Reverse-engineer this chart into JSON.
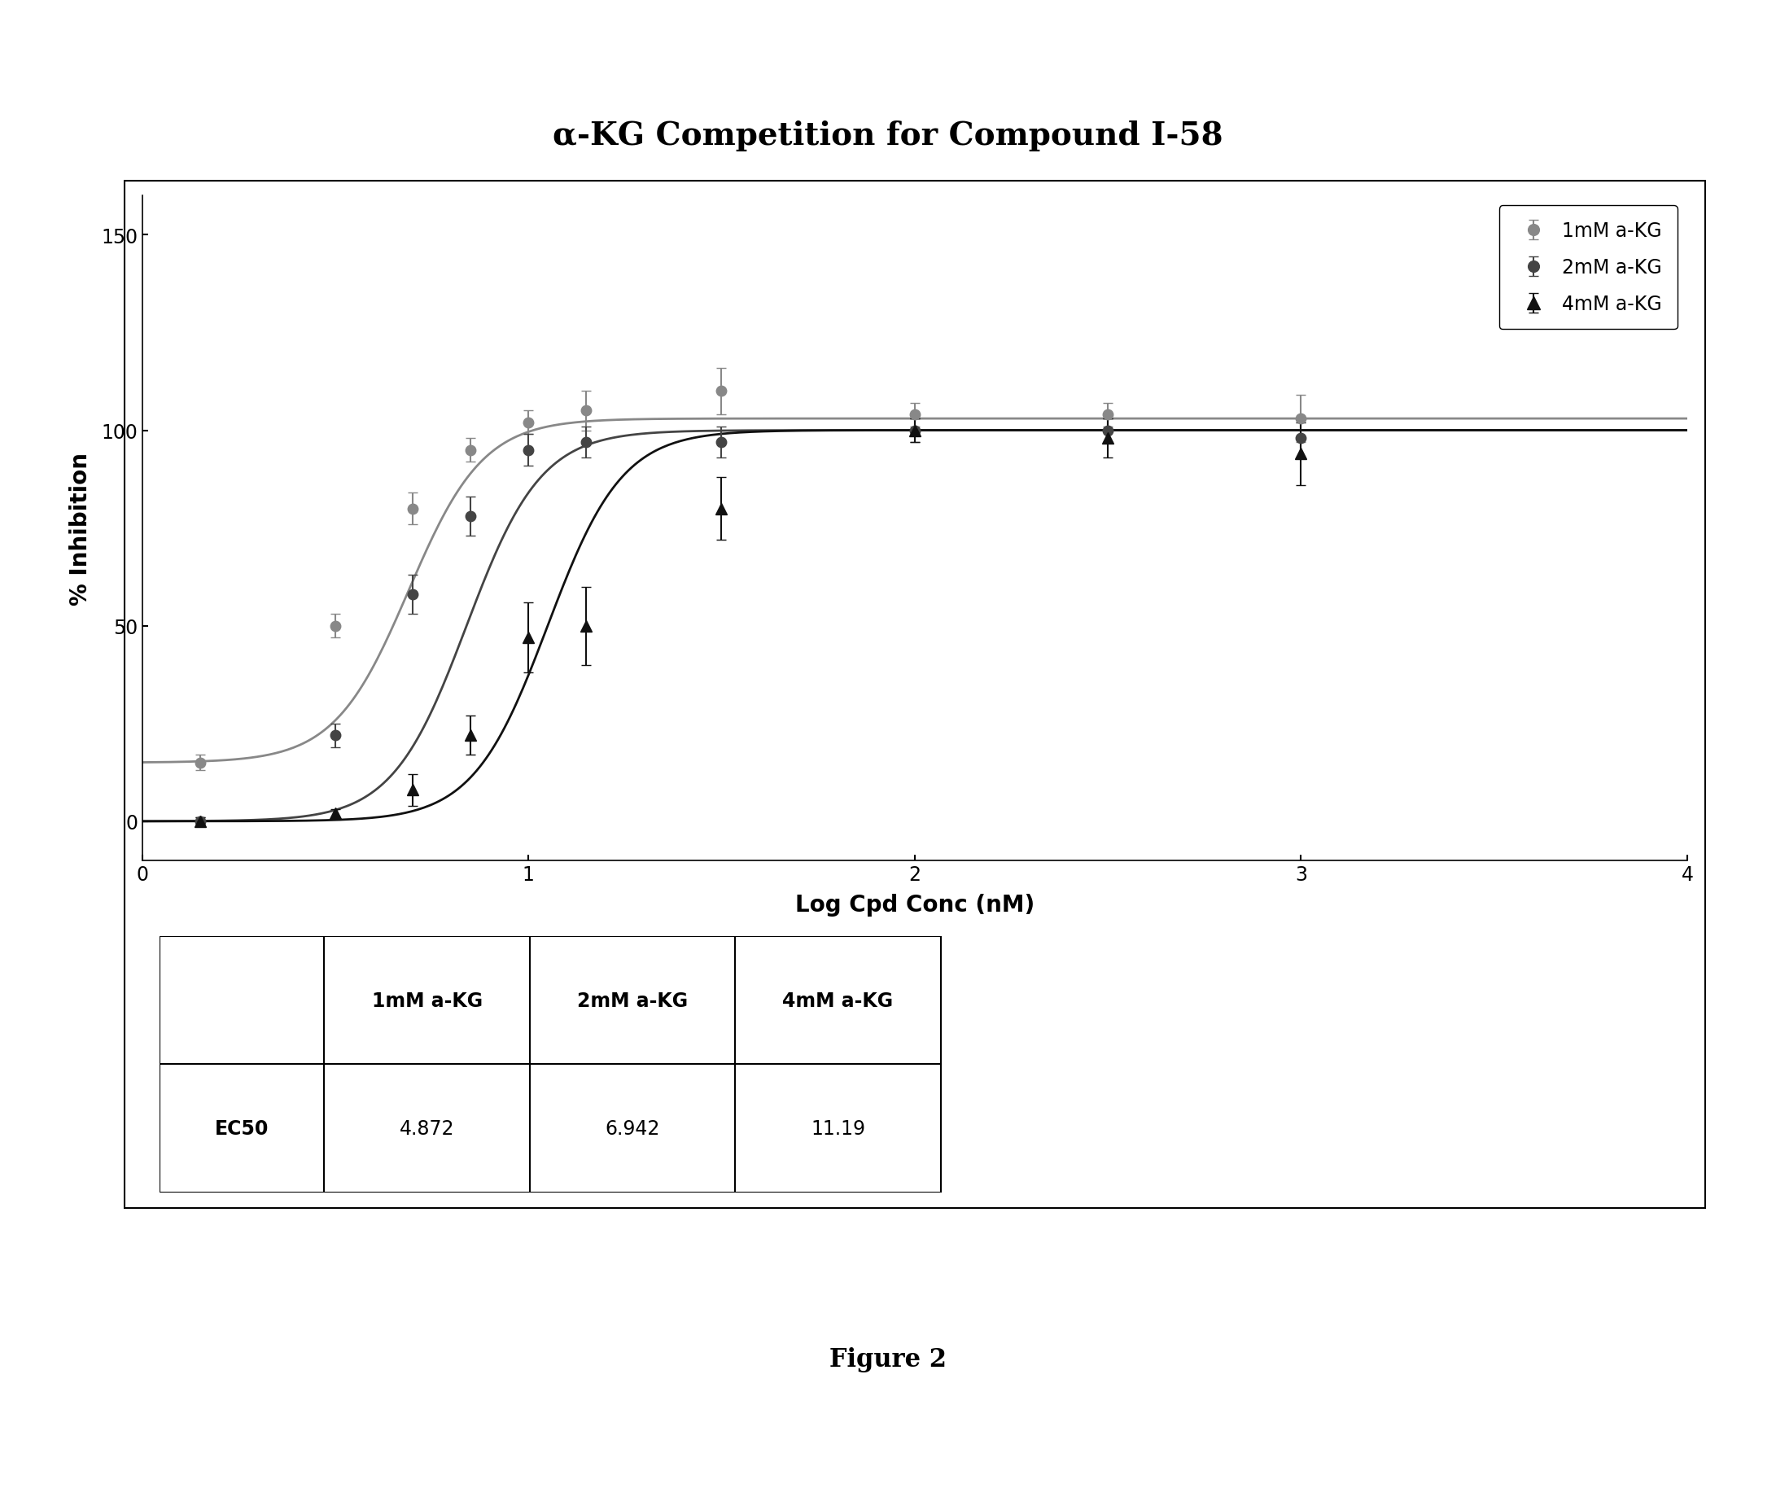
{
  "title": "α-KG Competition for Compound I-58",
  "xlabel": "Log Cpd Conc (nM)",
  "ylabel": "% Inhibition",
  "figure_caption": "Figure 2",
  "xlim": [
    0,
    4
  ],
  "ylim": [
    -10,
    160
  ],
  "yticks": [
    0,
    50,
    100,
    150
  ],
  "xticks": [
    0,
    1,
    2,
    3,
    4
  ],
  "series": [
    {
      "label": "1mM a-KG",
      "color": "#888888",
      "ec50_log": 0.69,
      "hill": 4.5,
      "top": 103,
      "bottom": 15,
      "marker": "o",
      "markersize": 9,
      "data_x": [
        0.15,
        0.5,
        0.7,
        0.85,
        1.0,
        1.15,
        1.5,
        2.0,
        2.5,
        3.0
      ],
      "data_y": [
        15,
        50,
        80,
        95,
        102,
        105,
        110,
        104,
        104,
        103
      ],
      "data_yerr": [
        2,
        3,
        4,
        3,
        3,
        5,
        6,
        3,
        3,
        6
      ]
    },
    {
      "label": "2mM a-KG",
      "color": "#444444",
      "ec50_log": 0.84,
      "hill": 4.5,
      "top": 100,
      "bottom": 0,
      "marker": "o",
      "markersize": 9,
      "data_x": [
        0.15,
        0.5,
        0.7,
        0.85,
        1.0,
        1.15,
        1.5,
        2.0,
        2.5,
        3.0
      ],
      "data_y": [
        0,
        22,
        58,
        78,
        95,
        97,
        97,
        100,
        100,
        98
      ],
      "data_yerr": [
        1,
        3,
        5,
        5,
        4,
        4,
        4,
        3,
        3,
        5
      ]
    },
    {
      "label": "4mM a-KG",
      "color": "#111111",
      "ec50_log": 1.05,
      "hill": 4.5,
      "top": 100,
      "bottom": 0,
      "marker": "^",
      "markersize": 10,
      "data_x": [
        0.15,
        0.5,
        0.7,
        0.85,
        1.0,
        1.15,
        1.5,
        2.0,
        2.5,
        3.0
      ],
      "data_y": [
        0,
        2,
        8,
        22,
        47,
        50,
        80,
        100,
        98,
        94
      ],
      "data_yerr": [
        1,
        1,
        4,
        5,
        9,
        10,
        8,
        3,
        5,
        8
      ]
    }
  ],
  "table_col_headers": [
    "",
    "1mM a-KG",
    "2mM a-KG",
    "4mM a-KG"
  ],
  "table_row_label": "EC50",
  "table_values": [
    "4.872",
    "6.942",
    "11.19"
  ],
  "background_color": "#ffffff"
}
